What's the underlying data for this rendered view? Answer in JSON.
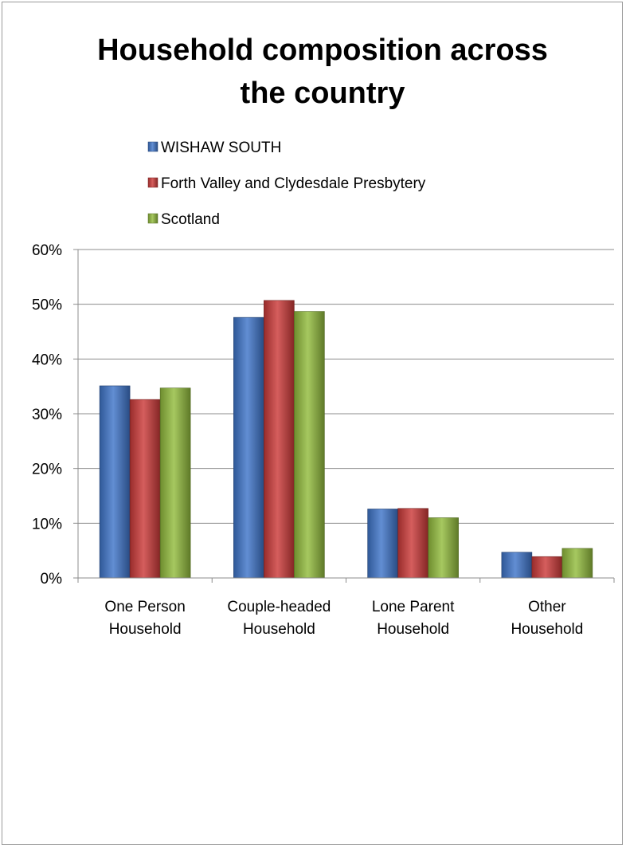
{
  "chart_data": {
    "type": "bar",
    "title_lines": [
      "Household composition across",
      "the country"
    ],
    "categories": [
      [
        "One Person",
        "Household"
      ],
      [
        "Couple-headed",
        "Household"
      ],
      [
        "Lone Parent",
        "Household"
      ],
      [
        "Other",
        "Household"
      ]
    ],
    "series": [
      {
        "name": "WISHAW SOUTH",
        "color": "#3f75c9",
        "values": [
          35.1,
          47.6,
          12.6,
          4.7
        ]
      },
      {
        "name": "Forth Valley and Clydesdale Presbytery",
        "color": "#cc3b39",
        "values": [
          32.6,
          50.7,
          12.7,
          3.9
        ]
      },
      {
        "name": "Scotland",
        "color": "#92bc3d",
        "values": [
          34.7,
          48.7,
          11.0,
          5.4
        ]
      }
    ],
    "ylim": [
      0,
      60
    ],
    "yticks": [
      0,
      10,
      20,
      30,
      40,
      50,
      60
    ],
    "ytick_labels": [
      "0%",
      "10%",
      "20%",
      "30%",
      "40%",
      "50%",
      "60%"
    ],
    "grid": true,
    "legend_position": "top"
  }
}
